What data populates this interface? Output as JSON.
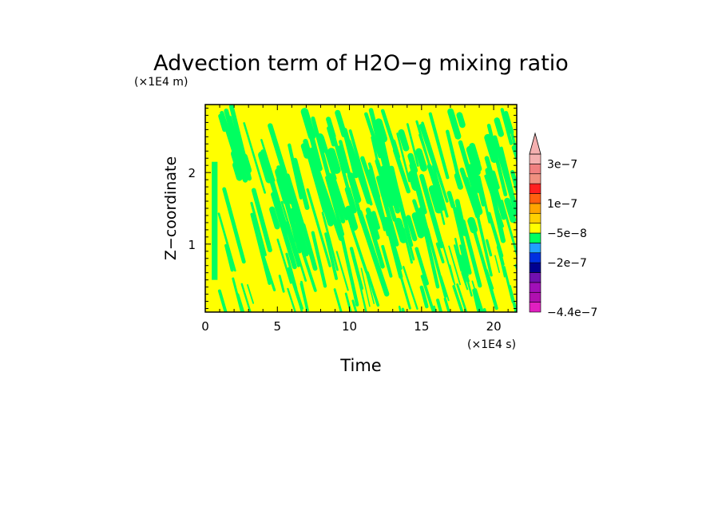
{
  "chart_data": {
    "type": "heatmap",
    "title": "Advection term of H2O−g mixing ratio",
    "xlabel": "Time",
    "ylabel": "Z−coordinate",
    "x_unit": "(×1E4 s)",
    "y_unit": "(×1E4 m)",
    "xlim": [
      0,
      21.6
    ],
    "ylim": [
      0.05,
      2.95
    ],
    "x_ticks": [
      0,
      5,
      10,
      15,
      20
    ],
    "x_tick_labels": [
      "0",
      "5",
      "10",
      "15",
      "20"
    ],
    "y_ticks": [
      1,
      2
    ],
    "y_tick_labels": [
      "1",
      "2"
    ],
    "colorbar": {
      "levels": [
        -4.4e-07,
        -4e-07,
        -3.5e-07,
        -3e-07,
        -2.5e-07,
        -2e-07,
        -1.5e-07,
        -1e-07,
        -5e-08,
        0,
        5e-08,
        1e-07,
        1.5e-07,
        2e-07,
        2.5e-07,
        3e-07
      ],
      "colors": [
        "#e020c0",
        "#b010b0",
        "#a010b8",
        "#7010b0",
        "#000090",
        "#0030e0",
        "#20a0ff",
        "#00ff60",
        "#ffff00",
        "#ffd000",
        "#ffa500",
        "#ff6010",
        "#ff2020",
        "#f09080",
        "#f08080",
        "#f4b0b0"
      ],
      "labels": [
        "3e−7",
        "1e−7",
        "−5e−8",
        "−2e−7",
        "−4.4e−7"
      ],
      "label_values": [
        3e-07,
        1e-07,
        -5e-08,
        -2e-07,
        -4.4e-07
      ],
      "extend": "max"
    },
    "field_summary": "Alternating positive (yellow) and negative (green) diagonal streaks across the domain; yellow dominates below z = 1, green dominates above z = 1.2"
  }
}
